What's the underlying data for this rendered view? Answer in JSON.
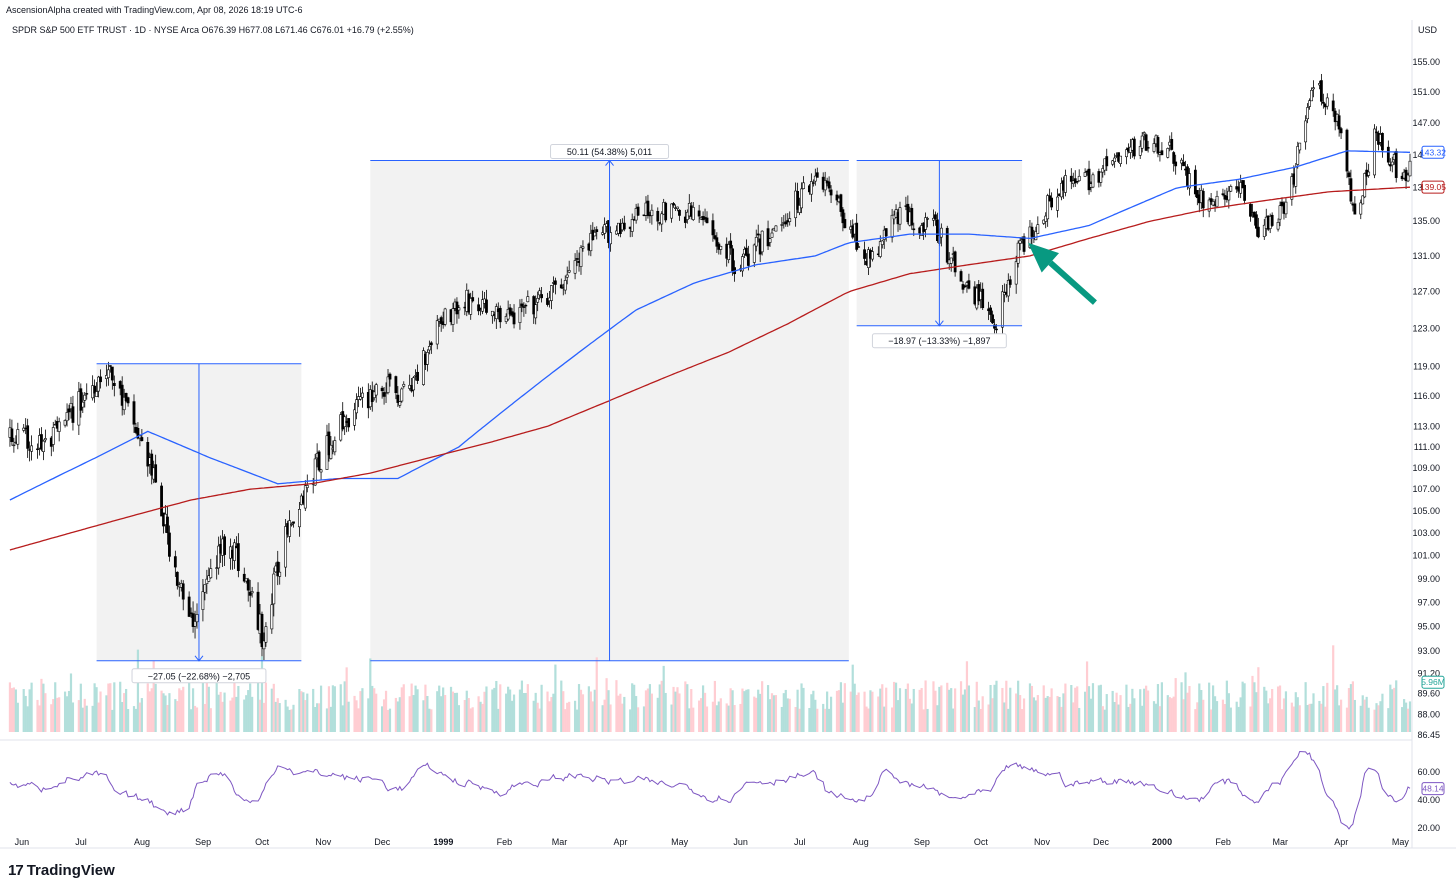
{
  "header": {
    "credit": "AscensionAlpha created with TradingView.com, Apr 08, 2026 18:19 UTC-6",
    "symbol_line": "SPDR S&P 500 ETF TRUST · 1D · NYSE Arca  O676.39  H677.08  L671.46  C676.01  +16.79 (+2.55%)",
    "currency": "USD"
  },
  "footer": {
    "brand": "TradingView",
    "logo_mark": "17"
  },
  "colors": {
    "up_candle": "#ffffff",
    "down_candle": "#000000",
    "ma_fast": "#2962ff",
    "ma_slow": "#b71c1c",
    "rsi": "#7e57c2",
    "measure_line": "#2962ff",
    "measure_fill": "#f2f2f2",
    "arrow": "#089981",
    "vol_up": "#b2dfdb",
    "vol_down": "#ffcdd2"
  },
  "chart_data": {
    "type": "candlestick",
    "price_axis": {
      "labels": [
        "155.00",
        "151.00",
        "147.00",
        "143.00",
        "139.00",
        "135.00",
        "131.00",
        "127.00",
        "123.00",
        "119.00",
        "116.00",
        "113.00",
        "111.00",
        "109.00",
        "107.00",
        "105.00",
        "103.00",
        "101.00",
        "99.00",
        "97.00",
        "95.00",
        "93.00",
        "91.20",
        "89.60",
        "88.00",
        "86.45"
      ],
      "values": [
        155,
        151,
        147,
        143,
        139,
        135,
        131,
        127,
        123,
        119,
        116,
        113,
        111,
        109,
        107,
        105,
        103,
        101,
        99,
        97,
        95,
        93,
        91.2,
        89.6,
        88,
        86.45
      ],
      "scale": "log"
    },
    "time_axis": {
      "labels": [
        "Jun",
        "Jul",
        "Aug",
        "Sep",
        "Oct",
        "Nov",
        "Dec",
        "1999",
        "Feb",
        "Mar",
        "Apr",
        "May",
        "Jun",
        "Jul",
        "Aug",
        "Sep",
        "Oct",
        "Nov",
        "Dec",
        "2000",
        "Feb",
        "Mar",
        "Apr",
        "May"
      ],
      "bold": [
        false,
        false,
        false,
        false,
        false,
        false,
        false,
        true,
        false,
        false,
        false,
        false,
        false,
        false,
        false,
        false,
        false,
        false,
        false,
        true,
        false,
        false,
        false,
        false
      ]
    },
    "anchors": [
      [
        "1998-06-01",
        112
      ],
      [
        "1998-06-20",
        111
      ],
      [
        "1998-07-20",
        119
      ],
      [
        "1998-08-10",
        110
      ],
      [
        "1998-08-31",
        95
      ],
      [
        "1998-09-20",
        103
      ],
      [
        "1998-10-08",
        94
      ],
      [
        "1998-10-20",
        104
      ],
      [
        "1998-11-15",
        113
      ],
      [
        "1998-12-05",
        117
      ],
      [
        "1998-12-20",
        116
      ],
      [
        "1999-01-05",
        124
      ],
      [
        "1999-01-20",
        126
      ],
      [
        "1999-02-10",
        124
      ],
      [
        "1999-03-05",
        127
      ],
      [
        "1999-03-25",
        133
      ],
      [
        "1999-04-20",
        136
      ],
      [
        "1999-05-15",
        136
      ],
      [
        "1999-06-05",
        130
      ],
      [
        "1999-06-25",
        134
      ],
      [
        "1999-07-16",
        141
      ],
      [
        "1999-08-05",
        133
      ],
      [
        "1999-08-12",
        130
      ],
      [
        "1999-08-25",
        136
      ],
      [
        "1999-09-15",
        134
      ],
      [
        "1999-09-25",
        129
      ],
      [
        "1999-10-15",
        124
      ],
      [
        "1999-10-25",
        131
      ],
      [
        "1999-11-15",
        139
      ],
      [
        "1999-12-01",
        140
      ],
      [
        "1999-12-31",
        145
      ],
      [
        "2000-01-10",
        144
      ],
      [
        "2000-01-28",
        137
      ],
      [
        "2000-02-15",
        139
      ],
      [
        "2000-02-25",
        134
      ],
      [
        "2000-03-10",
        136
      ],
      [
        "2000-03-24",
        152
      ],
      [
        "2000-04-05",
        148
      ],
      [
        "2000-04-14",
        135
      ],
      [
        "2000-04-25",
        146
      ],
      [
        "2000-05-08",
        140
      ],
      [
        "2000-05-12",
        141
      ]
    ],
    "ma_fast_anchors": [
      [
        "1998-06-01",
        106
      ],
      [
        "1998-07-15",
        110
      ],
      [
        "1998-08-10",
        112.5
      ],
      [
        "1998-09-10",
        110
      ],
      [
        "1998-10-15",
        107.5
      ],
      [
        "1998-11-15",
        108
      ],
      [
        "1998-12-15",
        108
      ],
      [
        "1999-01-15",
        111
      ],
      [
        "1999-03-01",
        118
      ],
      [
        "1999-04-15",
        125
      ],
      [
        "1999-05-15",
        128
      ],
      [
        "1999-06-15",
        130
      ],
      [
        "1999-07-15",
        131
      ],
      [
        "1999-08-01",
        132.5
      ],
      [
        "1999-09-01",
        133.5
      ],
      [
        "1999-10-01",
        133.5
      ],
      [
        "1999-11-01",
        133
      ],
      [
        "1999-12-01",
        134.5
      ],
      [
        "2000-01-15",
        139
      ],
      [
        "2000-02-15",
        140
      ],
      [
        "2000-03-15",
        141.5
      ],
      [
        "2000-04-10",
        143.5
      ],
      [
        "2000-05-12",
        143.32
      ]
    ],
    "ma_slow_anchors": [
      [
        "1998-06-01",
        101.5
      ],
      [
        "1998-08-01",
        104.5
      ],
      [
        "1998-09-01",
        106
      ],
      [
        "1998-10-01",
        107
      ],
      [
        "1998-11-01",
        107.5
      ],
      [
        "1998-12-01",
        108.5
      ],
      [
        "1999-01-01",
        110
      ],
      [
        "1999-02-01",
        111.5
      ],
      [
        "1999-03-01",
        113
      ],
      [
        "1999-04-01",
        115.5
      ],
      [
        "1999-05-01",
        118
      ],
      [
        "1999-06-01",
        120.5
      ],
      [
        "1999-07-01",
        123.5
      ],
      [
        "1999-08-01",
        127
      ],
      [
        "1999-09-01",
        129
      ],
      [
        "1999-10-01",
        130
      ],
      [
        "1999-11-01",
        131
      ],
      [
        "1999-12-01",
        133
      ],
      [
        "2000-01-01",
        135
      ],
      [
        "2000-02-01",
        136.5
      ],
      [
        "2000-03-01",
        137.5
      ],
      [
        "2000-04-01",
        138.5
      ],
      [
        "2000-05-12",
        139.05
      ]
    ],
    "series": [
      {
        "name": "",
        "current_value": "143.32",
        "color_key": "ma_fast"
      },
      {
        "name": "",
        "current_value": "139.05",
        "color_key": "ma_slow"
      },
      {
        "name": "",
        "current_value": "5.96M",
        "color_key": "vol_up"
      }
    ],
    "volume": {
      "current_value": "5.96M"
    },
    "rsi": {
      "current_value": "48.14",
      "axis_labels": [
        "60.00",
        "40.00",
        "20.00"
      ],
      "axis_values": [
        60,
        40,
        20
      ]
    },
    "measurements": [
      {
        "label": "−27.05 (−22.68%) −2,705",
        "from_date": "1998-07-15",
        "to_date": "1998-10-27",
        "high": 119.3,
        "low": 92.2,
        "direction": "down"
      },
      {
        "label": "50.11 (54.38%) 5,011",
        "from_date": "1998-12-01",
        "to_date": "1999-08-01",
        "high": 142.3,
        "low": 92.2,
        "direction": "up"
      },
      {
        "label": "−18.97 (−13.33%) −1,897",
        "from_date": "1999-08-05",
        "to_date": "1999-10-28",
        "high": 142.3,
        "low": 123.3,
        "direction": "down"
      }
    ],
    "annotation_arrow": {
      "from_date": "1999-12-04",
      "from_price": 125.8,
      "to_date": "1999-10-31",
      "to_price": 132.5
    }
  }
}
